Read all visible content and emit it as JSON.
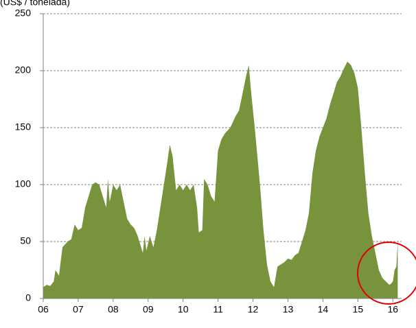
{
  "chart_data": {
    "type": "area",
    "title": "(US$ / tonelada)",
    "color": "#77933c",
    "x": [
      2006.0,
      2006.1,
      2006.2,
      2006.3,
      2006.35,
      2006.45,
      2006.55,
      2006.7,
      2006.8,
      2006.9,
      2007.0,
      2007.1,
      2007.2,
      2007.3,
      2007.4,
      2007.5,
      2007.6,
      2007.7,
      2007.8,
      2007.85,
      2007.9,
      2008.0,
      2008.1,
      2008.2,
      2008.3,
      2008.4,
      2008.5,
      2008.6,
      2008.7,
      2008.8,
      2008.85,
      2008.9,
      2008.95,
      2009.05,
      2009.15,
      2009.25,
      2009.35,
      2009.45,
      2009.55,
      2009.62,
      2009.7,
      2009.8,
      2009.9,
      2010.0,
      2010.1,
      2010.2,
      2010.3,
      2010.4,
      2010.45,
      2010.55,
      2010.6,
      2010.7,
      2010.8,
      2010.9,
      2011.0,
      2011.1,
      2011.2,
      2011.35,
      2011.5,
      2011.6,
      2011.7,
      2011.8,
      2011.88,
      2011.95,
      2012.05,
      2012.2,
      2012.3,
      2012.4,
      2012.5,
      2012.6,
      2012.7,
      2012.8,
      2012.9,
      2013.0,
      2013.1,
      2013.2,
      2013.3,
      2013.4,
      2013.5,
      2013.6,
      2013.7,
      2013.8,
      2013.9,
      2014.0,
      2014.1,
      2014.2,
      2014.3,
      2014.4,
      2014.5,
      2014.6,
      2014.7,
      2014.8,
      2014.9,
      2015.0,
      2015.1,
      2015.2,
      2015.3,
      2015.4,
      2015.5,
      2015.6,
      2015.7,
      2015.8,
      2015.9,
      2015.95,
      2016.0,
      2016.05,
      2016.1,
      2016.14
    ],
    "values": [
      10,
      12,
      11,
      15,
      25,
      20,
      45,
      50,
      52,
      65,
      60,
      62,
      80,
      90,
      100,
      102,
      100,
      90,
      80,
      105,
      85,
      100,
      95,
      100,
      85,
      70,
      65,
      62,
      55,
      45,
      40,
      55,
      42,
      55,
      45,
      60,
      80,
      100,
      120,
      135,
      125,
      95,
      100,
      95,
      100,
      95,
      100,
      80,
      58,
      60,
      105,
      100,
      90,
      85,
      130,
      140,
      145,
      150,
      160,
      165,
      180,
      195,
      205,
      180,
      150,
      100,
      60,
      30,
      15,
      10,
      28,
      30,
      32,
      35,
      34,
      38,
      40,
      50,
      60,
      75,
      110,
      130,
      142,
      150,
      158,
      170,
      180,
      190,
      195,
      202,
      208,
      205,
      198,
      185,
      150,
      110,
      75,
      55,
      40,
      25,
      18,
      15,
      12,
      13,
      15,
      25,
      28,
      50
    ],
    "xlim": [
      2006,
      2016.25
    ],
    "xticks": [
      {
        "value": 2006,
        "label": "06"
      },
      {
        "value": 2007,
        "label": "07"
      },
      {
        "value": 2008,
        "label": "08"
      },
      {
        "value": 2009,
        "label": "09"
      },
      {
        "value": 2010,
        "label": "10"
      },
      {
        "value": 2011,
        "label": "11"
      },
      {
        "value": 2012,
        "label": "12"
      },
      {
        "value": 2013,
        "label": "13"
      },
      {
        "value": 2014,
        "label": "14"
      },
      {
        "value": 2015,
        "label": "15"
      },
      {
        "value": 2016,
        "label": "16"
      }
    ],
    "ylim": [
      0,
      250
    ],
    "yticks": [
      0,
      50,
      100,
      150,
      200,
      250
    ],
    "grid": true
  }
}
